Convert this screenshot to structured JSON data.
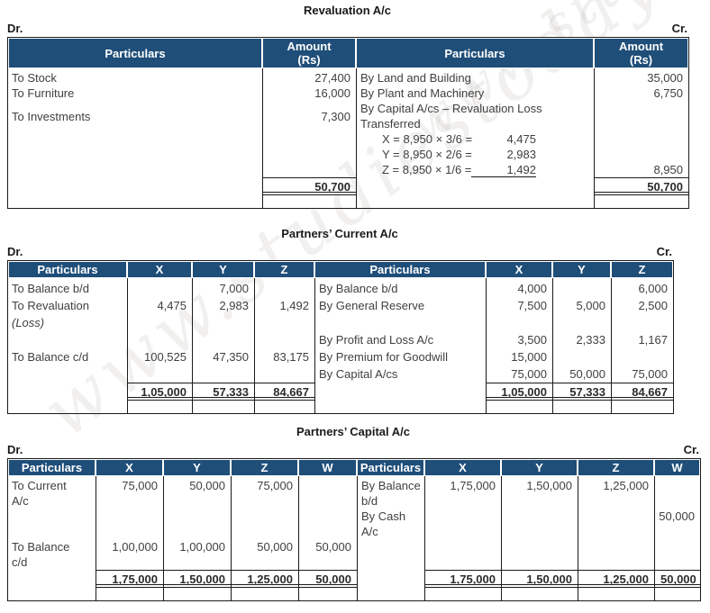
{
  "watermark": {
    "text": "www.studiestoday.com"
  },
  "colors": {
    "header_bg": "#1F4E79",
    "header_text": "#FFFFFF",
    "body_text": "#404040",
    "border": "#1A1A1A"
  },
  "revaluation": {
    "title": "Revaluation A/c",
    "dr_label": "Dr.",
    "cr_label": "Cr.",
    "headers": {
      "particulars": "Particulars",
      "amount_line1": "Amount",
      "amount_line2": "(Rs)"
    },
    "debit": {
      "labels": [
        "To Stock",
        "To Furniture",
        "To Investments"
      ],
      "amounts": [
        "27,400",
        "16,000",
        "7,300"
      ],
      "total": "50,700"
    },
    "credit": {
      "labels": [
        "By Land and Building",
        "By Plant and Machinery"
      ],
      "amounts": [
        "35,000",
        "6,750"
      ],
      "loss_line1": "By Capital A/cs – Revaluation Loss",
      "loss_line2": "Transferred",
      "loss_items": [
        {
          "formula": "X = 8,950 × 3/6 =",
          "value": "4,475"
        },
        {
          "formula": "Y = 8,950 × 2/6 =",
          "value": "2,983"
        },
        {
          "formula": "Z = 8,950 × 1/6 =",
          "value": "1,492"
        }
      ],
      "loss_total": "8,950",
      "total": "50,700"
    }
  },
  "current": {
    "title": "Partners’ Current A/c",
    "dr_label": "Dr.",
    "cr_label": "Cr.",
    "headers": {
      "particulars": "Particulars",
      "x": "X",
      "y": "Y",
      "z": "Z"
    },
    "debit": {
      "labels": [
        "To Balance b/d",
        "To Revaluation",
        "(Loss)",
        "",
        "To Balance c/d",
        ""
      ],
      "x": [
        "",
        "4,475",
        "",
        "",
        "100,525",
        ""
      ],
      "y": [
        "7,000",
        "2,983",
        "",
        "",
        "47,350",
        ""
      ],
      "z": [
        "",
        "1,492",
        "",
        "",
        "83,175",
        ""
      ],
      "total_x": "1,05,000",
      "total_y": "57,333",
      "total_z": "84,667"
    },
    "credit": {
      "labels": [
        "By Balance b/d",
        "By General Reserve",
        "",
        "By Profit and Loss A/c",
        "By Premium for Goodwill",
        "By Capital A/cs"
      ],
      "x": [
        "4,000",
        "7,500",
        "",
        "3,500",
        "15,000",
        "75,000"
      ],
      "y": [
        "",
        "5,000",
        "",
        "2,333",
        "",
        "50,000"
      ],
      "z": [
        "6,000",
        "2,500",
        "",
        "1,167",
        "",
        "75,000"
      ],
      "total_x": "1,05,000",
      "total_y": "57,333",
      "total_z": "84,667"
    }
  },
  "capital": {
    "title": "Partners’ Capital A/c",
    "dr_label": "Dr.",
    "cr_label": "Cr.",
    "headers": {
      "particulars": "Particulars",
      "x": "X",
      "y": "Y",
      "z": "Z",
      "w": "W"
    },
    "debit": {
      "labels": [
        "To Current",
        "A/c",
        "",
        "",
        "To Balance",
        "c/d"
      ],
      "x": [
        "75,000",
        "",
        "",
        "",
        "1,00,000",
        ""
      ],
      "y": [
        "50,000",
        "",
        "",
        "",
        "1,00,000",
        ""
      ],
      "z": [
        "75,000",
        "",
        "",
        "",
        "50,000",
        ""
      ],
      "w": [
        "",
        "",
        "",
        "",
        "50,000",
        ""
      ],
      "total_x": "1,75,000",
      "total_y": "1,50,000",
      "total_z": "1,25,000",
      "total_w": "50,000"
    },
    "credit": {
      "labels": [
        "By Balance",
        "b/d",
        "By Cash",
        "A/c",
        "",
        ""
      ],
      "x": [
        "1,75,000",
        "",
        "",
        "",
        "",
        ""
      ],
      "y": [
        "1,50,000",
        "",
        "",
        "",
        "",
        ""
      ],
      "z": [
        "1,25,000",
        "",
        "",
        "",
        "",
        ""
      ],
      "w": [
        "",
        "",
        "50,000",
        "",
        "",
        ""
      ],
      "total_x": "1,75,000",
      "total_y": "1,50,000",
      "total_z": "1,25,000",
      "total_w": "50,000"
    }
  }
}
